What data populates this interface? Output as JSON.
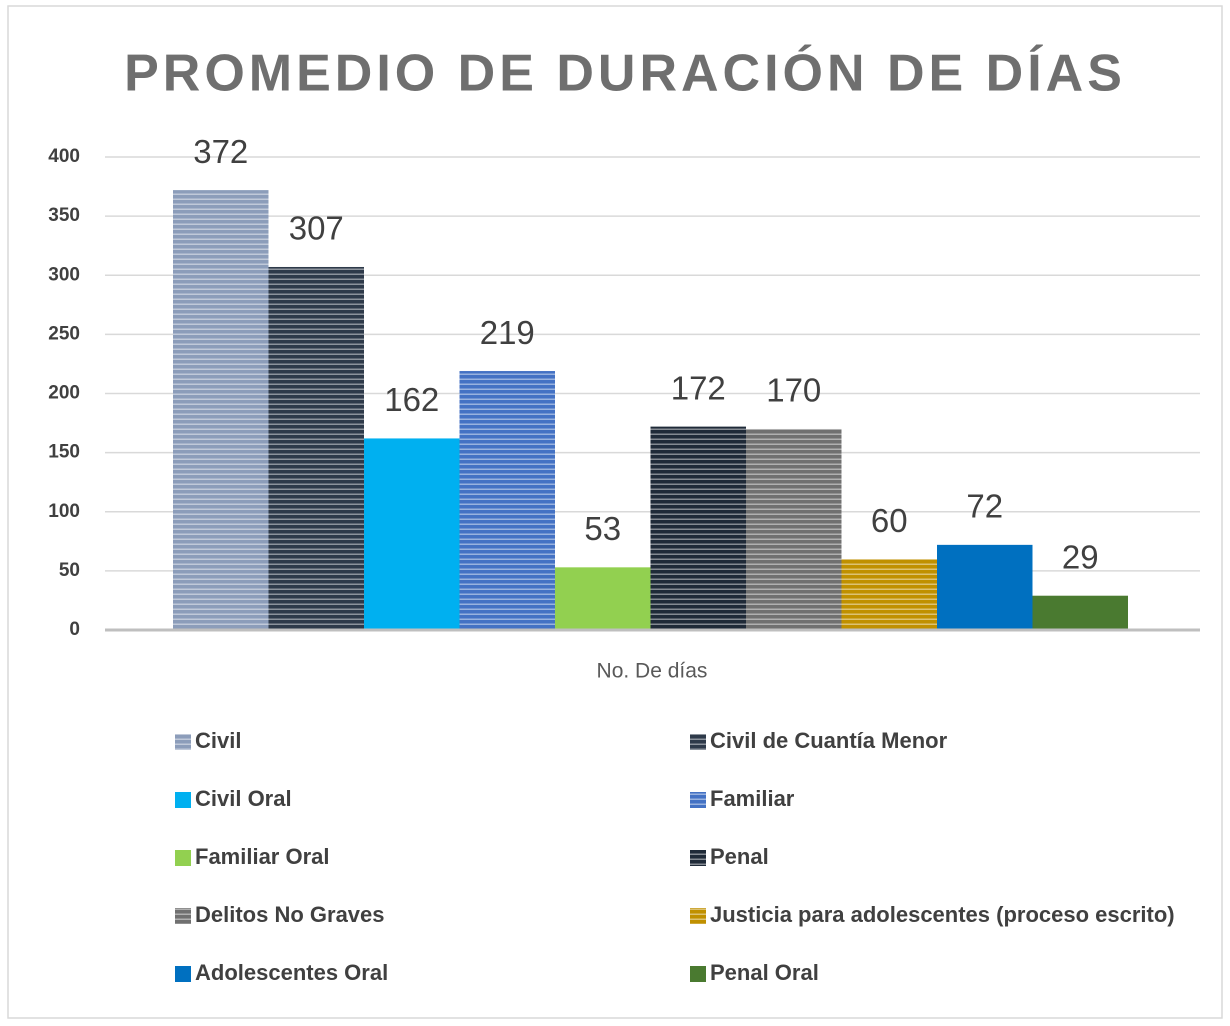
{
  "chart_data": {
    "type": "bar",
    "title": "PROMEDIO DE DURACIÓN DE DÍAS",
    "categories": [
      "No. De días"
    ],
    "series": [
      {
        "name": "Civil",
        "color": "#8c9dba",
        "hatch": "horizontal",
        "values": [
          372
        ]
      },
      {
        "name": "Civil de Cuantía Menor",
        "color": "#2e3a4a",
        "hatch": "horizontal",
        "values": [
          307
        ]
      },
      {
        "name": "Civil Oral",
        "color": "#00b0f0",
        "values": [
          162
        ]
      },
      {
        "name": "Familiar",
        "color": "#4472c4",
        "hatch": "horizontal",
        "values": [
          219
        ]
      },
      {
        "name": "Familiar Oral",
        "color": "#92d050",
        "values": [
          53
        ]
      },
      {
        "name": "Penal",
        "color": "#1f2a38",
        "hatch": "horizontal",
        "values": [
          172
        ]
      },
      {
        "name": "Delitos No Graves",
        "color": "#707070",
        "hatch": "horizontal",
        "values": [
          170
        ]
      },
      {
        "name": "Justicia para adolescentes (proceso escrito)",
        "color": "#c09000",
        "hatch": "horizontal",
        "values": [
          60
        ]
      },
      {
        "name": "Adolescentes Oral",
        "color": "#0070c0",
        "values": [
          72
        ]
      },
      {
        "name": "Penal Oral",
        "color": "#4a7a30",
        "values": [
          29
        ]
      }
    ],
    "ylim": [
      0,
      400
    ],
    "yticks": [
      0,
      50,
      100,
      150,
      200,
      250,
      300,
      350,
      400
    ],
    "grid": true,
    "legend": "bottom"
  }
}
